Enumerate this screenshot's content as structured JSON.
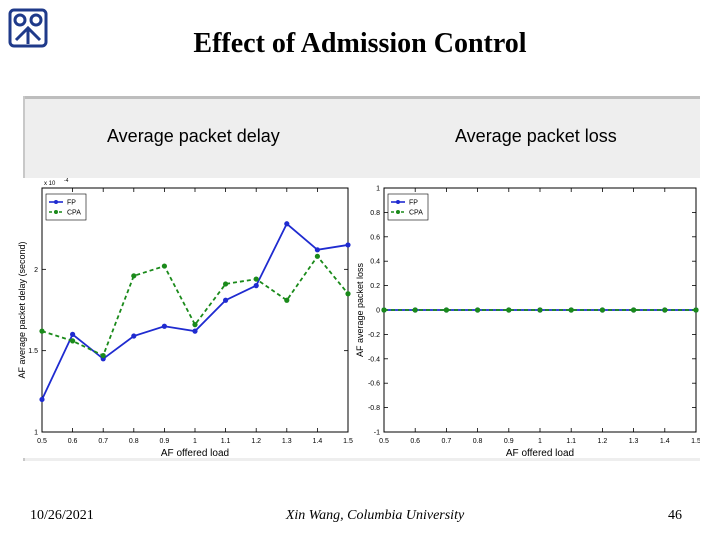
{
  "slide": {
    "title": "Effect of Admission Control",
    "footer_date": "10/26/2021",
    "footer_author": "Xin Wang, Columbia University",
    "page_number": "46"
  },
  "colors": {
    "fp": "#1f2bd0",
    "cpa": "#1a8a1a",
    "logo": "#1f3a8a"
  },
  "chart_data": [
    {
      "type": "line",
      "subtitle": "Average packet delay",
      "xlabel": "AF offered load",
      "ylabel": "AF average packet delay (second)",
      "y_multiplier": "x 10",
      "y_exponent": "-4",
      "x_ticks": [
        "0.5",
        "0.6",
        "0.7",
        "0.8",
        "0.9",
        "1",
        "1.1",
        "1.2",
        "1.3",
        "1.4",
        "1.5"
      ],
      "y_ticks": [
        "1",
        "1.5",
        "2"
      ],
      "xlim": [
        0.5,
        1.5
      ],
      "ylim": [
        1.0,
        2.5
      ],
      "x": [
        0.5,
        0.6,
        0.7,
        0.8,
        0.9,
        1.0,
        1.1,
        1.2,
        1.3,
        1.4,
        1.5
      ],
      "series": [
        {
          "name": "FP",
          "style": "solid",
          "values": [
            1.2,
            1.6,
            1.45,
            1.59,
            1.65,
            1.62,
            1.81,
            1.9,
            2.28,
            2.12,
            2.15
          ]
        },
        {
          "name": "CPA",
          "style": "dashed",
          "values": [
            1.62,
            1.56,
            1.47,
            1.96,
            2.02,
            1.66,
            1.91,
            1.94,
            1.81,
            2.08,
            1.85
          ]
        }
      ],
      "legend": "top-left",
      "grid": false
    },
    {
      "type": "line",
      "subtitle": "Average packet loss",
      "xlabel": "AF offered load",
      "ylabel": "AF average packet loss",
      "x_ticks": [
        "0.5",
        "0.6",
        "0.7",
        "0.8",
        "0.9",
        "1",
        "1.1",
        "1.2",
        "1.3",
        "1.4",
        "1.5"
      ],
      "y_ticks": [
        "-1",
        "-0.8",
        "-0.6",
        "-0.4",
        "-0.2",
        "0",
        "0.2",
        "0.4",
        "0.6",
        "0.8",
        "1"
      ],
      "xlim": [
        0.5,
        1.5
      ],
      "ylim": [
        -1,
        1
      ],
      "x": [
        0.5,
        0.6,
        0.7,
        0.8,
        0.9,
        1.0,
        1.1,
        1.2,
        1.3,
        1.4,
        1.5
      ],
      "series": [
        {
          "name": "FP",
          "style": "solid",
          "values": [
            0,
            0,
            0,
            0,
            0,
            0,
            0,
            0,
            0,
            0,
            0
          ]
        },
        {
          "name": "CPA",
          "style": "dashed",
          "values": [
            0,
            0,
            0,
            0,
            0,
            0,
            0,
            0,
            0,
            0,
            0
          ]
        }
      ],
      "legend": "top-left",
      "grid": false
    }
  ]
}
